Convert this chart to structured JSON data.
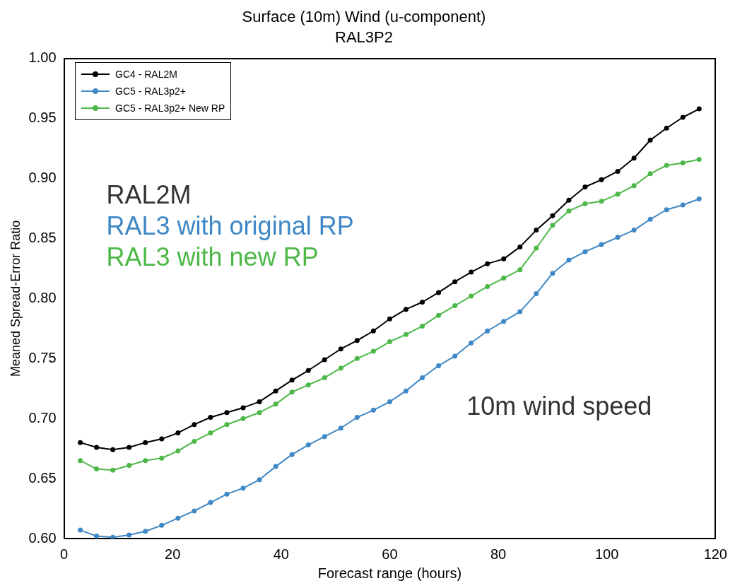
{
  "chart_data": {
    "type": "line",
    "title": "Surface (10m) Wind (u-component)",
    "subtitle": "RAL3P2",
    "xlabel": "Forecast range (hours)",
    "ylabel": "Meaned Spread-Error Ratio",
    "x": [
      3,
      6,
      9,
      12,
      15,
      18,
      21,
      24,
      27,
      30,
      33,
      36,
      39,
      42,
      45,
      48,
      51,
      54,
      57,
      60,
      63,
      66,
      69,
      72,
      75,
      78,
      81,
      84,
      87,
      90,
      93,
      96,
      99,
      102,
      105,
      108,
      111,
      114,
      117
    ],
    "series": [
      {
        "name": "GC4 - RAL2M",
        "color": "#000000",
        "values": [
          0.68,
          0.676,
          0.674,
          0.676,
          0.68,
          0.683,
          0.688,
          0.695,
          0.701,
          0.705,
          0.709,
          0.714,
          0.723,
          0.732,
          0.74,
          0.749,
          0.758,
          0.765,
          0.773,
          0.783,
          0.791,
          0.797,
          0.805,
          0.814,
          0.822,
          0.829,
          0.833,
          0.843,
          0.857,
          0.869,
          0.882,
          0.893,
          0.899,
          0.906,
          0.917,
          0.932,
          0.942,
          0.951,
          0.958
        ]
      },
      {
        "name": "GC5 - RAL3p2+",
        "color": "#3f88c5",
        "values": [
          0.607,
          0.602,
          0.601,
          0.603,
          0.606,
          0.611,
          0.617,
          0.623,
          0.63,
          0.637,
          0.642,
          0.649,
          0.66,
          0.67,
          0.678,
          0.685,
          0.692,
          0.701,
          0.707,
          0.714,
          0.723,
          0.734,
          0.744,
          0.752,
          0.763,
          0.773,
          0.781,
          0.789,
          0.804,
          0.821,
          0.832,
          0.839,
          0.845,
          0.851,
          0.857,
          0.866,
          0.874,
          0.878,
          0.883
        ]
      },
      {
        "name": "GC5 - RAL3p2+ New RP",
        "color": "#4db848",
        "values": [
          0.665,
          0.658,
          0.657,
          0.661,
          0.665,
          0.667,
          0.673,
          0.681,
          0.688,
          0.695,
          0.7,
          0.705,
          0.712,
          0.722,
          0.728,
          0.734,
          0.742,
          0.75,
          0.756,
          0.764,
          0.77,
          0.777,
          0.786,
          0.794,
          0.802,
          0.81,
          0.817,
          0.824,
          0.842,
          0.861,
          0.873,
          0.879,
          0.881,
          0.887,
          0.894,
          0.904,
          0.911,
          0.913,
          0.916
        ]
      }
    ],
    "annotations": [
      "RAL2M",
      "RAL3 with original RP",
      "RAL3 with new RP",
      "10m wind speed"
    ],
    "xlim": [
      0,
      120
    ],
    "xticks": [
      0,
      20,
      40,
      60,
      80,
      100,
      120
    ],
    "ylim": [
      0.6,
      1.0
    ],
    "yticks": [
      {
        "value": 0.6,
        "label": "0.60"
      },
      {
        "value": 0.65,
        "label": "0.65"
      },
      {
        "value": 0.7,
        "label": "0.70"
      },
      {
        "value": 0.75,
        "label": "0.75"
      },
      {
        "value": 0.8,
        "label": "0.80"
      },
      {
        "value": 0.85,
        "label": "0.85"
      },
      {
        "value": 0.9,
        "label": "0.90"
      },
      {
        "value": 0.95,
        "label": "0.95"
      },
      {
        "value": 1.0,
        "label": "1.00"
      }
    ],
    "grid": false,
    "legend": "top left",
    "marker": "circle",
    "line_style": "solid"
  }
}
